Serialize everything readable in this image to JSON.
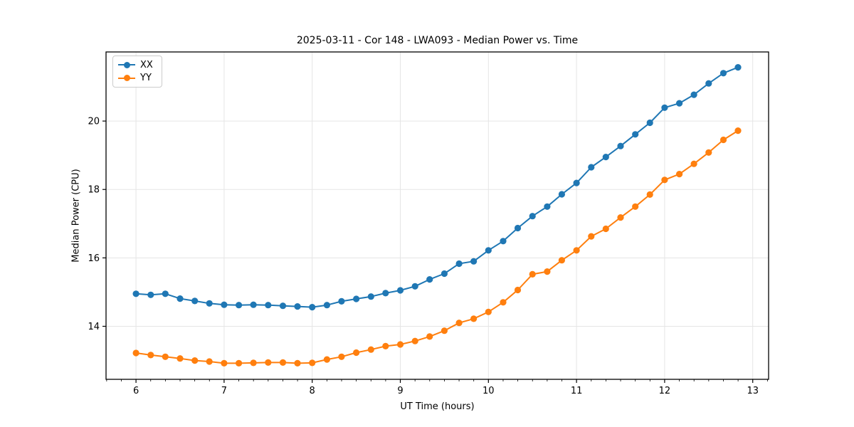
{
  "chart_data": {
    "type": "line",
    "title": "2025-03-11 - Cor 148 - LWA093 - Median Power vs. Time",
    "xlabel": "UT Time (hours)",
    "ylabel": "Median Power (CPU)",
    "xlim": [
      5.66,
      13.18
    ],
    "ylim": [
      12.45,
      22.02
    ],
    "x_ticks": [
      6,
      7,
      8,
      9,
      10,
      11,
      12,
      13
    ],
    "y_ticks": [
      14,
      16,
      18,
      20
    ],
    "x_minor_step": 0.16667,
    "grid": true,
    "grid_color": "#e5e5e5",
    "legend_position": "upper left",
    "x": [
      6.0,
      6.167,
      6.333,
      6.5,
      6.667,
      6.833,
      7.0,
      7.167,
      7.333,
      7.5,
      7.667,
      7.833,
      8.0,
      8.167,
      8.333,
      8.5,
      8.667,
      8.833,
      9.0,
      9.167,
      9.333,
      9.5,
      9.667,
      9.833,
      10.0,
      10.167,
      10.333,
      10.5,
      10.667,
      10.833,
      11.0,
      11.167,
      11.333,
      11.5,
      11.667,
      11.833,
      12.0,
      12.167,
      12.333,
      12.5,
      12.667,
      12.833
    ],
    "series": [
      {
        "name": "XX",
        "color": "#1f77b4",
        "values": [
          14.95,
          14.92,
          14.95,
          14.81,
          14.74,
          14.67,
          14.63,
          14.62,
          14.63,
          14.62,
          14.6,
          14.58,
          14.56,
          14.62,
          14.73,
          14.8,
          14.87,
          14.97,
          15.05,
          15.17,
          15.37,
          15.54,
          15.83,
          15.9,
          16.22,
          16.49,
          16.87,
          17.22,
          17.5,
          17.86,
          18.19,
          18.65,
          18.95,
          19.27,
          19.61,
          19.95,
          20.39,
          20.52,
          20.77,
          21.1,
          21.4,
          21.57
        ]
      },
      {
        "name": "YY",
        "color": "#ff7f0e",
        "values": [
          13.22,
          13.16,
          13.11,
          13.06,
          13.0,
          12.97,
          12.92,
          12.92,
          12.93,
          12.94,
          12.94,
          12.92,
          12.93,
          13.03,
          13.11,
          13.23,
          13.32,
          13.42,
          13.47,
          13.57,
          13.7,
          13.87,
          14.1,
          14.22,
          14.42,
          14.7,
          15.06,
          15.52,
          15.6,
          15.93,
          16.22,
          16.63,
          16.85,
          17.18,
          17.5,
          17.85,
          18.28,
          18.45,
          18.75,
          19.08,
          19.45,
          19.72
        ]
      }
    ]
  }
}
